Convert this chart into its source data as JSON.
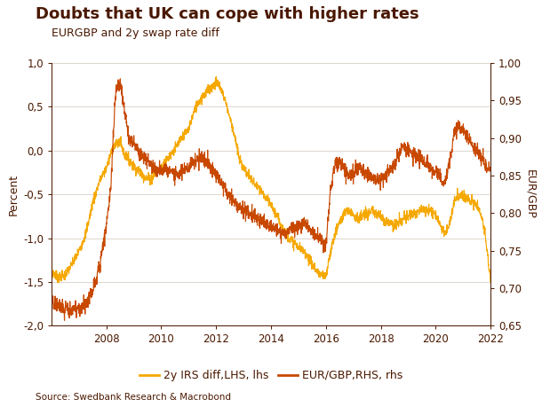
{
  "title": "Doubts that UK can cope with higher rates",
  "subtitle": "EURGBP and 2y swap rate diff",
  "ylabel_left": "Percent",
  "ylabel_right": "EUR/GBP",
  "source": "Source: Swedbank Research & Macrobond",
  "lhs_ylim": [
    -2.0,
    1.0
  ],
  "rhs_ylim": [
    0.65,
    1.0
  ],
  "lhs_yticks": [
    -2.0,
    -1.5,
    -1.0,
    -0.5,
    0.0,
    0.5,
    1.0
  ],
  "rhs_yticks": [
    0.65,
    0.7,
    0.75,
    0.8,
    0.85,
    0.9,
    0.95,
    1.0
  ],
  "color_lhs": "#F5A800",
  "color_rhs": "#C84800",
  "legend_lhs": "2y IRS diff,LHS, lhs",
  "legend_rhs": "EUR/GBP,RHS, rhs",
  "title_color": "#4A1800",
  "axis_color": "#4A1800",
  "grid_color": "#D8D0C8",
  "bg_color": "#FFFFFF",
  "title_fontsize": 13,
  "subtitle_fontsize": 9,
  "label_fontsize": 9,
  "tick_fontsize": 8.5,
  "xticks": [
    2008,
    2010,
    2012,
    2014,
    2016,
    2018,
    2020,
    2022
  ],
  "lhs_data_years": [
    2006.0,
    2006.25,
    2006.5,
    2006.75,
    2007.0,
    2007.25,
    2007.5,
    2007.75,
    2008.0,
    2008.25,
    2008.5,
    2008.67,
    2008.83,
    2009.0,
    2009.17,
    2009.33,
    2009.5,
    2009.67,
    2009.83,
    2010.0,
    2010.17,
    2010.33,
    2010.5,
    2010.67,
    2010.83,
    2011.0,
    2011.17,
    2011.33,
    2011.5,
    2011.67,
    2011.83,
    2012.0,
    2012.17,
    2012.33,
    2012.5,
    2012.67,
    2012.83,
    2013.0,
    2013.17,
    2013.33,
    2013.5,
    2013.67,
    2013.83,
    2014.0,
    2014.17,
    2014.33,
    2014.5,
    2014.67,
    2014.83,
    2015.0,
    2015.17,
    2015.33,
    2015.5,
    2015.67,
    2015.83,
    2016.0,
    2016.17,
    2016.33,
    2016.5,
    2016.67,
    2016.83,
    2017.0,
    2017.17,
    2017.33,
    2017.5,
    2017.67,
    2017.83,
    2018.0,
    2018.17,
    2018.33,
    2018.5,
    2018.67,
    2018.83,
    2019.0,
    2019.17,
    2019.33,
    2019.5,
    2019.67,
    2019.83,
    2020.0,
    2020.17,
    2020.33,
    2020.5,
    2020.67,
    2020.83,
    2021.0,
    2021.17,
    2021.33,
    2021.5,
    2021.67,
    2021.83,
    2022.0
  ],
  "lhs_data_values": [
    -1.38,
    -1.45,
    -1.42,
    -1.3,
    -1.15,
    -0.95,
    -0.6,
    -0.35,
    -0.2,
    0.05,
    0.1,
    -0.05,
    -0.1,
    -0.18,
    -0.22,
    -0.28,
    -0.32,
    -0.3,
    -0.25,
    -0.2,
    -0.12,
    -0.05,
    0.02,
    0.1,
    0.18,
    0.25,
    0.42,
    0.55,
    0.62,
    0.68,
    0.72,
    0.78,
    0.72,
    0.58,
    0.38,
    0.18,
    -0.08,
    -0.2,
    -0.28,
    -0.35,
    -0.42,
    -0.48,
    -0.55,
    -0.62,
    -0.72,
    -0.82,
    -0.92,
    -1.0,
    -1.05,
    -1.1,
    -1.15,
    -1.2,
    -1.3,
    -1.38,
    -1.42,
    -1.45,
    -1.15,
    -0.95,
    -0.82,
    -0.72,
    -0.68,
    -0.72,
    -0.78,
    -0.75,
    -0.72,
    -0.7,
    -0.72,
    -0.75,
    -0.8,
    -0.82,
    -0.85,
    -0.82,
    -0.78,
    -0.75,
    -0.72,
    -0.7,
    -0.68,
    -0.67,
    -0.68,
    -0.72,
    -0.85,
    -0.95,
    -0.85,
    -0.58,
    -0.52,
    -0.52,
    -0.54,
    -0.58,
    -0.62,
    -0.75,
    -1.0,
    -1.5
  ],
  "rhs_data_years": [
    2006.0,
    2006.25,
    2006.5,
    2006.75,
    2007.0,
    2007.25,
    2007.5,
    2007.75,
    2008.0,
    2008.17,
    2008.33,
    2008.5,
    2008.67,
    2008.83,
    2009.0,
    2009.17,
    2009.33,
    2009.5,
    2009.67,
    2009.83,
    2010.0,
    2010.17,
    2010.33,
    2010.5,
    2010.67,
    2010.83,
    2011.0,
    2011.17,
    2011.33,
    2011.5,
    2011.67,
    2011.83,
    2012.0,
    2012.17,
    2012.33,
    2012.5,
    2012.67,
    2012.83,
    2013.0,
    2013.17,
    2013.33,
    2013.5,
    2013.67,
    2013.83,
    2014.0,
    2014.17,
    2014.33,
    2014.5,
    2014.67,
    2014.83,
    2015.0,
    2015.17,
    2015.33,
    2015.5,
    2015.67,
    2015.83,
    2016.0,
    2016.17,
    2016.33,
    2016.5,
    2016.67,
    2016.83,
    2017.0,
    2017.17,
    2017.33,
    2017.5,
    2017.67,
    2017.83,
    2018.0,
    2018.17,
    2018.33,
    2018.5,
    2018.67,
    2018.83,
    2019.0,
    2019.17,
    2019.33,
    2019.5,
    2019.67,
    2019.83,
    2020.0,
    2020.17,
    2020.33,
    2020.5,
    2020.67,
    2020.83,
    2021.0,
    2021.17,
    2021.33,
    2021.5,
    2021.67,
    2021.83,
    2022.0
  ],
  "rhs_data_values": [
    0.682,
    0.678,
    0.672,
    0.67,
    0.672,
    0.678,
    0.698,
    0.728,
    0.782,
    0.84,
    0.96,
    0.975,
    0.935,
    0.898,
    0.892,
    0.882,
    0.875,
    0.868,
    0.862,
    0.858,
    0.855,
    0.858,
    0.855,
    0.85,
    0.852,
    0.858,
    0.862,
    0.868,
    0.872,
    0.875,
    0.868,
    0.86,
    0.852,
    0.842,
    0.832,
    0.822,
    0.815,
    0.808,
    0.805,
    0.802,
    0.798,
    0.794,
    0.79,
    0.785,
    0.782,
    0.778,
    0.775,
    0.774,
    0.776,
    0.78,
    0.784,
    0.786,
    0.782,
    0.776,
    0.77,
    0.762,
    0.758,
    0.832,
    0.862,
    0.868,
    0.858,
    0.852,
    0.855,
    0.86,
    0.858,
    0.852,
    0.848,
    0.844,
    0.84,
    0.85,
    0.858,
    0.865,
    0.88,
    0.888,
    0.885,
    0.88,
    0.875,
    0.87,
    0.865,
    0.86,
    0.855,
    0.848,
    0.838,
    0.868,
    0.908,
    0.915,
    0.91,
    0.902,
    0.892,
    0.882,
    0.872,
    0.862,
    0.855
  ]
}
